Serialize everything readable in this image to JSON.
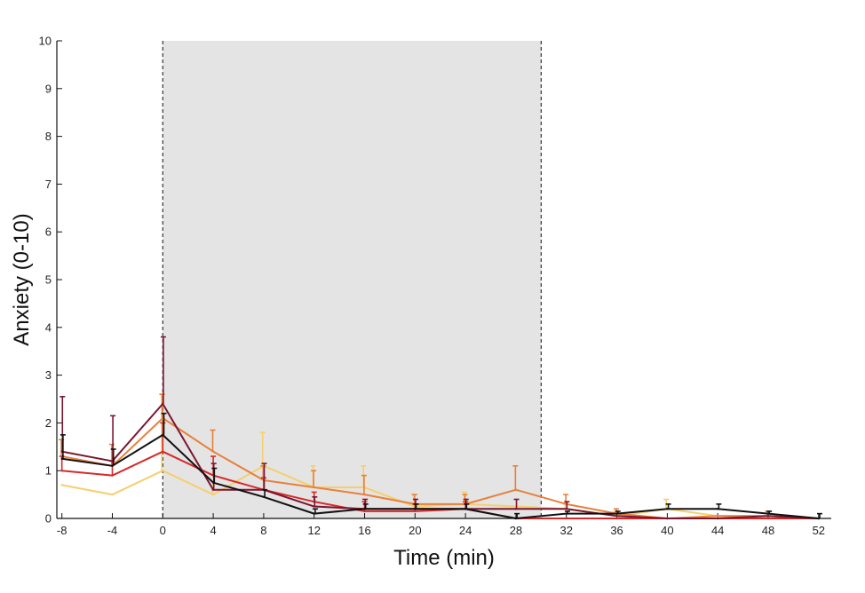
{
  "chart_data": {
    "type": "line",
    "xlabel": "Time (min)",
    "ylabel": "Anxiety (0-10)",
    "xlim": [
      -8.4,
      53
    ],
    "ylim": [
      0,
      10
    ],
    "xticks": [
      -8,
      -4,
      0,
      4,
      8,
      12,
      16,
      20,
      24,
      28,
      32,
      36,
      40,
      44,
      48,
      52
    ],
    "yticks": [
      0,
      1,
      2,
      3,
      4,
      5,
      6,
      7,
      8,
      9,
      10
    ],
    "grid": false,
    "shaded_region": {
      "x_start": 0,
      "x_end": 30,
      "color": "#e4e4e4"
    },
    "vlines": [
      0,
      30
    ],
    "series": [
      {
        "color": "#f5cf6e",
        "x": [
          -8,
          -4,
          0,
          4,
          8,
          12,
          16,
          20,
          24,
          28,
          32,
          36,
          40,
          44,
          48,
          52
        ],
        "values": [
          0.7,
          0.5,
          1.0,
          0.5,
          1.1,
          0.65,
          0.65,
          0.25,
          0.3,
          0.25,
          0.2,
          0.05,
          0.2,
          0.05,
          0.05,
          0.0
        ],
        "err": [
          0.0,
          0.0,
          1.6,
          0.2,
          0.7,
          0.45,
          0.45,
          0.25,
          0.25,
          0.0,
          0.1,
          0.1,
          0.2,
          0.0,
          0.0,
          0.0
        ]
      },
      {
        "color": "#e8803a",
        "x": [
          -8,
          -4,
          0,
          4,
          8,
          12,
          16,
          20,
          24,
          28,
          32,
          36,
          40,
          44,
          48,
          52
        ],
        "values": [
          1.3,
          1.1,
          2.1,
          1.4,
          0.8,
          0.65,
          0.5,
          0.3,
          0.3,
          0.6,
          0.3,
          0.1,
          0.0,
          0.05,
          0.05,
          0.0
        ],
        "err": [
          0.35,
          0.45,
          0.5,
          0.45,
          0.3,
          0.35,
          0.4,
          0.2,
          0.2,
          0.5,
          0.2,
          0.1,
          0.0,
          0.0,
          0.1,
          0.0
        ]
      },
      {
        "color": "#d62a2a",
        "x": [
          -8,
          -4,
          0,
          4,
          8,
          12,
          16,
          20,
          24,
          28,
          32,
          36,
          40,
          44,
          48,
          52
        ],
        "values": [
          1.0,
          0.9,
          1.4,
          0.9,
          0.6,
          0.35,
          0.15,
          0.15,
          0.2,
          0.0,
          0.0,
          0.0,
          0.0,
          0.0,
          0.0,
          0.0
        ],
        "err": [
          0.3,
          0.3,
          0.6,
          0.4,
          0.25,
          0.2,
          0.2,
          0.15,
          0.15,
          0.0,
          0.0,
          0.0,
          0.0,
          0.0,
          0.0,
          0.0
        ]
      },
      {
        "color": "#7a1530",
        "x": [
          -8,
          -4,
          0,
          4,
          8,
          12,
          16,
          20,
          24,
          28,
          32,
          36,
          40,
          44,
          48,
          52
        ],
        "values": [
          1.4,
          1.2,
          2.4,
          0.6,
          0.6,
          0.25,
          0.2,
          0.2,
          0.2,
          0.2,
          0.2,
          0.05,
          0.0,
          0.0,
          0.05,
          0.0
        ],
        "err": [
          1.15,
          0.95,
          1.4,
          0.55,
          0.55,
          0.2,
          0.2,
          0.2,
          0.2,
          0.2,
          0.15,
          0.0,
          0.0,
          0.0,
          0.0,
          0.0
        ]
      },
      {
        "color": "#111111",
        "x": [
          -8,
          -4,
          0,
          4,
          8,
          12,
          16,
          20,
          24,
          28,
          32,
          36,
          40,
          44,
          48,
          52
        ],
        "values": [
          1.25,
          1.1,
          1.75,
          0.75,
          0.45,
          0.1,
          0.2,
          0.2,
          0.2,
          0.0,
          0.1,
          0.1,
          0.2,
          0.2,
          0.1,
          0.0
        ],
        "err": [
          0.5,
          0.35,
          0.45,
          0.3,
          0.15,
          0.1,
          0.1,
          0.1,
          0.1,
          0.1,
          0.05,
          0.05,
          0.1,
          0.1,
          0.05,
          0.1
        ]
      }
    ]
  }
}
